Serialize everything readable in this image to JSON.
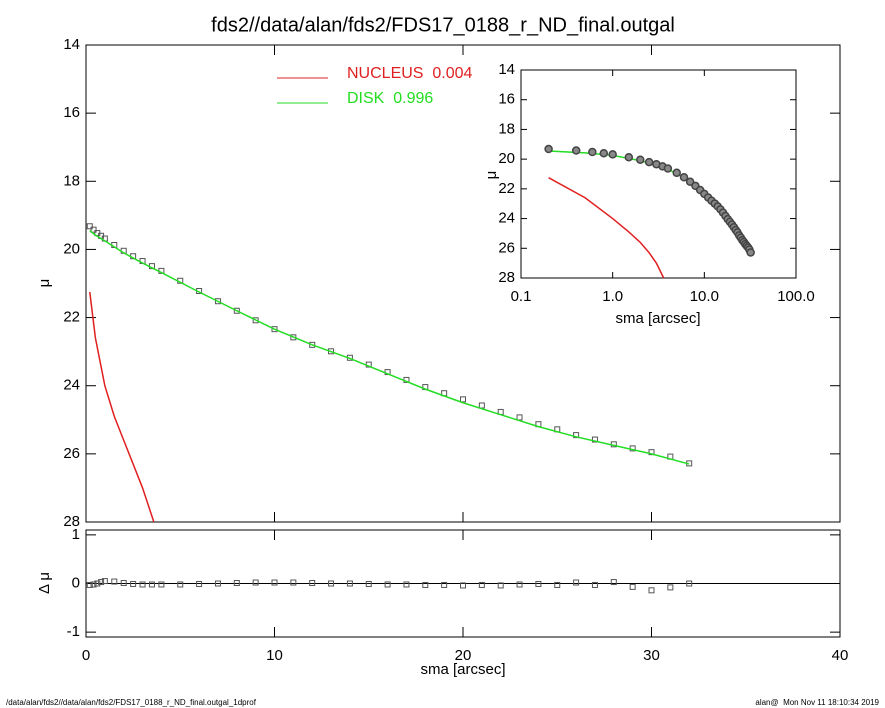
{
  "chart_data": [
    {
      "type": "line",
      "title": "fds2//data/alan/fds2/FDS17_0188_r_ND_final.outgal",
      "ylabel": "μ",
      "xlim": [
        0,
        40
      ],
      "xticks": [
        0,
        10,
        20,
        30,
        40
      ],
      "show_xtick_labels": false,
      "ylim": [
        28,
        14
      ],
      "yticks": [
        14,
        16,
        18,
        20,
        22,
        24,
        26,
        28
      ],
      "legend": "top",
      "series": [
        {
          "marker": "square",
          "color": "#555555",
          "x": [
            0.2,
            0.4,
            0.6,
            0.8,
            1,
            1.5,
            2,
            2.5,
            3,
            3.5,
            4,
            5,
            6,
            7,
            8,
            9,
            10,
            11,
            12,
            13,
            14,
            15,
            16,
            17,
            18,
            19,
            20,
            21,
            22,
            23,
            24,
            25,
            26,
            27,
            28,
            29,
            30,
            31,
            32
          ],
          "values": [
            19.32,
            19.42,
            19.52,
            19.6,
            19.68,
            19.87,
            20.04,
            20.2,
            20.34,
            20.49,
            20.63,
            20.92,
            21.22,
            21.52,
            21.8,
            22.08,
            22.34,
            22.58,
            22.8,
            22.99,
            23.18,
            23.38,
            23.6,
            23.83,
            24.04,
            24.22,
            24.4,
            24.58,
            24.77,
            24.93,
            25.13,
            25.28,
            25.45,
            25.58,
            25.72,
            25.84,
            25.95,
            26.08,
            26.28
          ]
        },
        {
          "name": "NUCLEUS  0.004",
          "marker": "line",
          "color": "#e02020",
          "x": [
            0.2,
            0.5,
            1,
            1.5,
            2,
            2.5,
            3,
            3.6
          ],
          "values": [
            21.25,
            22.6,
            24.0,
            24.9,
            25.6,
            26.3,
            27.0,
            28.0
          ]
        },
        {
          "name": "DISK  0.996",
          "marker": "line",
          "color": "#22dd22",
          "x": [
            0.2,
            0.5,
            1,
            2,
            3,
            4,
            6,
            8,
            10,
            12,
            14,
            16,
            18,
            20,
            22,
            24,
            26,
            28,
            30,
            32
          ],
          "values": [
            19.45,
            19.58,
            19.75,
            20.1,
            20.4,
            20.68,
            21.25,
            21.8,
            22.34,
            22.8,
            23.2,
            23.65,
            24.1,
            24.5,
            24.85,
            25.2,
            25.5,
            25.75,
            26.0,
            26.3
          ]
        }
      ]
    },
    {
      "type": "line",
      "xlabel": "sma [arcsec]",
      "ylabel": "μ",
      "xlog": true,
      "xlim": [
        0.1,
        100
      ],
      "xticks": [
        0.1,
        {
          "value": 1,
          "label": "1.0"
        },
        {
          "value": 10,
          "label": "10.0"
        },
        {
          "value": 100,
          "label": "100.0"
        }
      ],
      "ylim": [
        28,
        14
      ],
      "yticks": [
        14,
        16,
        18,
        20,
        22,
        24,
        26,
        28
      ],
      "series": [
        {
          "marker": "line",
          "color": "#e02020",
          "x": [
            0.2,
            0.5,
            1,
            1.5,
            2,
            2.5,
            3,
            3.6
          ],
          "values": [
            21.25,
            22.6,
            24.0,
            24.9,
            25.6,
            26.3,
            27.0,
            28.0
          ]
        },
        {
          "marker": "line",
          "color": "#22dd22",
          "x": [
            0.2,
            0.5,
            1,
            2,
            3,
            4,
            6,
            8,
            10,
            12,
            14,
            16,
            18,
            20,
            22,
            24,
            26,
            28,
            30,
            32
          ],
          "values": [
            19.45,
            19.58,
            19.75,
            20.1,
            20.4,
            20.68,
            21.25,
            21.8,
            22.34,
            22.8,
            23.2,
            23.65,
            24.1,
            24.5,
            24.85,
            25.2,
            25.5,
            25.75,
            26.0,
            26.3
          ]
        },
        {
          "marker": "circle",
          "color": "#444444",
          "x": [
            0.2,
            0.4,
            0.6,
            0.8,
            1,
            1.5,
            2,
            2.5,
            3,
            3.5,
            4,
            5,
            6,
            7,
            8,
            9,
            10,
            11,
            12,
            13,
            14,
            15,
            16,
            17,
            18,
            19,
            20,
            21,
            22,
            23,
            24,
            25,
            26,
            27,
            28,
            29,
            30,
            31,
            32
          ],
          "values": [
            19.32,
            19.42,
            19.52,
            19.6,
            19.68,
            19.87,
            20.04,
            20.2,
            20.34,
            20.49,
            20.63,
            20.92,
            21.22,
            21.52,
            21.8,
            22.08,
            22.34,
            22.58,
            22.8,
            22.99,
            23.18,
            23.38,
            23.6,
            23.83,
            24.04,
            24.22,
            24.4,
            24.58,
            24.77,
            24.93,
            25.13,
            25.28,
            25.45,
            25.58,
            25.72,
            25.84,
            25.95,
            26.08,
            26.28
          ]
        }
      ]
    },
    {
      "type": "line",
      "xlabel": "sma [arcsec]",
      "ylabel": "Δ μ",
      "xlim": [
        0,
        40
      ],
      "xticks": [
        0,
        10,
        20,
        30,
        40
      ],
      "show_xtick_labels": true,
      "ylim": [
        -1.1,
        1.1
      ],
      "yticks": [
        -1,
        0,
        1
      ],
      "reference_line": 0,
      "series": [
        {
          "marker": "square",
          "color": "#555555",
          "x": [
            0.2,
            0.4,
            0.6,
            0.8,
            1,
            1.5,
            2,
            2.5,
            3,
            3.5,
            4,
            5,
            6,
            7,
            8,
            9,
            10,
            11,
            12,
            13,
            14,
            15,
            16,
            17,
            18,
            19,
            20,
            21,
            22,
            23,
            24,
            25,
            26,
            27,
            28,
            29,
            30,
            31,
            32
          ],
          "values": [
            -0.03,
            -0.02,
            0.0,
            0.03,
            0.05,
            0.04,
            0.01,
            -0.01,
            -0.02,
            -0.02,
            -0.02,
            -0.02,
            -0.01,
            0.0,
            0.01,
            0.02,
            0.02,
            0.02,
            0.01,
            0.0,
            0.0,
            -0.01,
            -0.02,
            -0.02,
            -0.03,
            -0.03,
            -0.04,
            -0.03,
            -0.04,
            -0.02,
            -0.01,
            -0.03,
            0.02,
            -0.03,
            0.03,
            -0.07,
            -0.14,
            -0.08,
            0.0
          ]
        }
      ]
    }
  ],
  "footer": {
    "left": "/data/alan/fds2//data/alan/fds2/FDS17_0188_r_ND_final.outgal_1dprof",
    "right": "alan@  Mon Nov 11 18:10:34 2019"
  }
}
